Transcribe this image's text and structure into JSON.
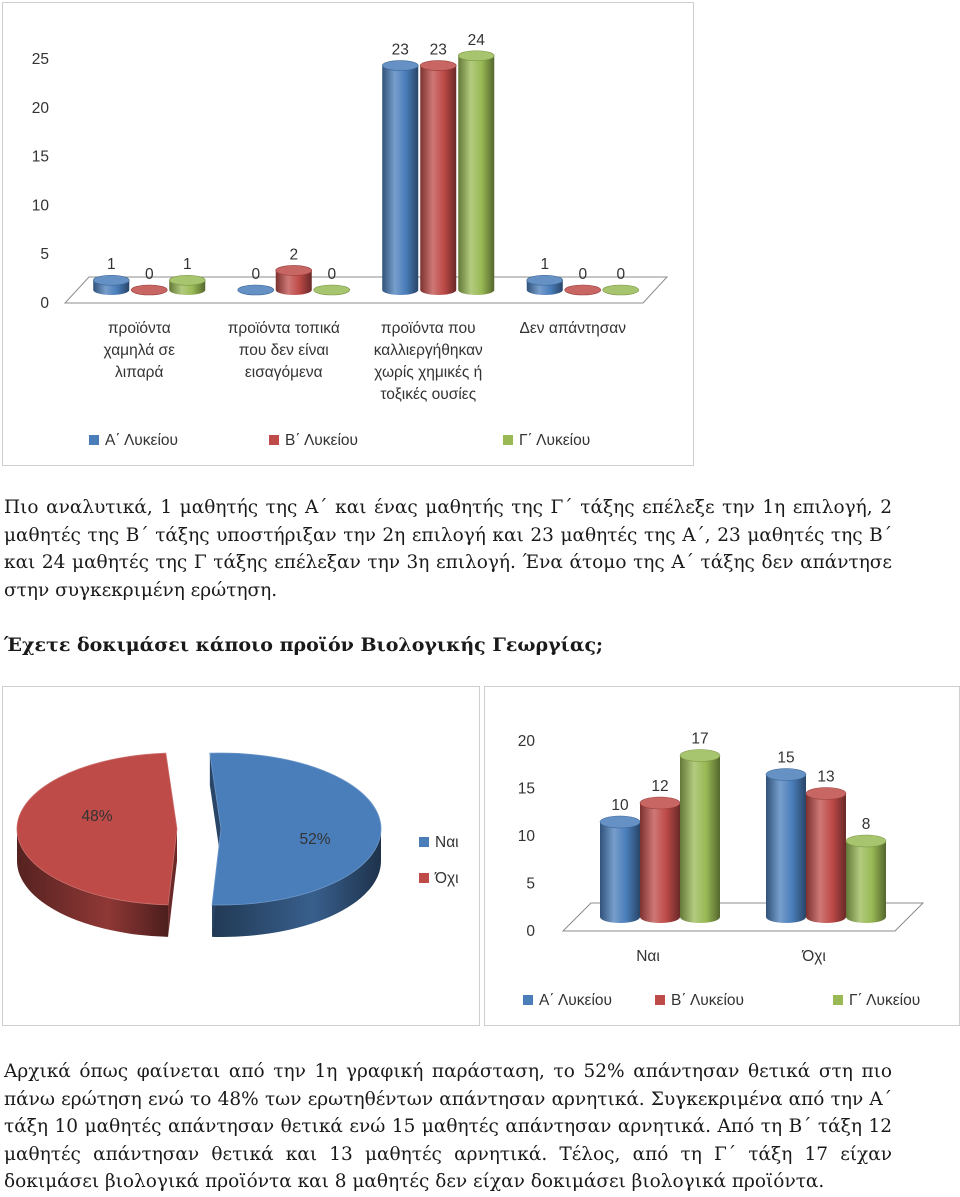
{
  "chart_data": [
    {
      "type": "bar",
      "style": "3d-cylinder",
      "categories": [
        [
          "προϊόντα",
          "χαμηλά σε",
          "λιπαρά"
        ],
        [
          "προϊόντα τοπικά",
          "που δεν είναι",
          "εισαγόμενα"
        ],
        [
          "προϊόντα που",
          "καλλιεργήθηκαν",
          "χωρίς χημικές ή",
          "τοξικές ουσίες"
        ],
        [
          "Δεν απάντησαν"
        ]
      ],
      "series": [
        {
          "name": "Α΄ Λυκείου",
          "values": [
            1,
            0,
            23,
            1
          ],
          "color": "#4a7ebb"
        },
        {
          "name": "Β΄ Λυκείου",
          "values": [
            0,
            2,
            23,
            0
          ],
          "color": "#be4b48"
        },
        {
          "name": "Γ΄ Λυκείου",
          "values": [
            1,
            0,
            24,
            0
          ],
          "color": "#98b954"
        }
      ],
      "yticks": [
        "0",
        "5",
        "10",
        "15",
        "20",
        "25"
      ],
      "ylim": [
        0,
        25
      ],
      "legend_position": "bottom"
    },
    {
      "type": "pie",
      "style": "3d",
      "labels": [
        "Ναι",
        "Όχι"
      ],
      "values": [
        52,
        48
      ],
      "value_labels": [
        "52%",
        "48%"
      ],
      "colors": [
        "#4a7ebb",
        "#be4b48"
      ],
      "legend_position": "right"
    },
    {
      "type": "bar",
      "style": "3d-cylinder",
      "categories": [
        [
          "Ναι"
        ],
        [
          "Όχι"
        ]
      ],
      "series": [
        {
          "name": "Α΄ Λυκείου",
          "values": [
            10,
            15
          ],
          "color": "#4a7ebb"
        },
        {
          "name": "Β΄ Λυκείου",
          "values": [
            12,
            13
          ],
          "color": "#be4b48"
        },
        {
          "name": "Γ΄ Λυκείου",
          "values": [
            17,
            8
          ],
          "color": "#98b954"
        }
      ],
      "yticks": [
        "0",
        "5",
        "10",
        "15",
        "20"
      ],
      "ylim": [
        0,
        20
      ],
      "legend_position": "bottom"
    }
  ],
  "text": {
    "para1": "Πιο αναλυτικά, 1 μαθητής της Α΄ και ένας μαθητής της Γ΄ τάξης επέλεξε την 1η επιλογή, 2 μαθητές της Β΄ τάξης υποστήριξαν την 2η επιλογή και 23 μαθητές της Α΄, 23 μαθητές της Β΄ και 24 μαθητές της Γ τάξης επέλεξαν την 3η επιλογή. Ένα άτομο της Α΄ τάξης δεν απάντησε στην συγκεκριμένη ερώτηση.",
    "question": "Έχετε δοκιμάσει κάποιο προϊόν Βιολογικής Γεωργίας;",
    "para2": "Αρχικά όπως φαίνεται από την 1η γραφική παράσταση, το 52% απάντησαν θετικά στη πιο πάνω ερώτηση ενώ το 48% των ερωτηθέντων απάντησαν αρνητικά. Συγκεκριμένα από την Α΄ τάξη 10 μαθητές απάντησαν θετικά ενώ 15 μαθητές απάντησαν αρνητικά. Από τη Β΄ τάξη 12 μαθητές απάντησαν θετικά και 13 μαθητές αρνητικά. Τέλος, από τη Γ΄ τάξη 17 είχαν δοκιμάσει βιολογικά προϊόντα και 8 μαθητές δεν είχαν δοκιμάσει βιολογικά προϊόντα."
  }
}
